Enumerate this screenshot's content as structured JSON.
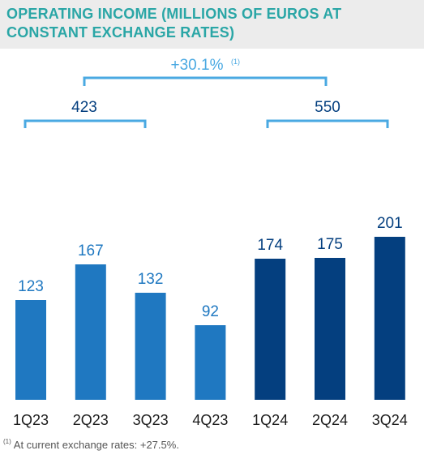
{
  "title": "OPERATING INCOME (MILLIONS OF EUROS AT CONSTANT EXCHANGE RATES)",
  "footnote": {
    "marker": "(1)",
    "text": "At current exchange rates: +27.5%."
  },
  "colors": {
    "title": "#2aa6a6",
    "bar_2023": "#1f78c1",
    "bar_2024": "#043f7f",
    "bracket": "#4aa9e2",
    "label_2023": "#1f78c1",
    "label_2024": "#043f7f"
  },
  "annotations": {
    "growth": "+30.1%",
    "growth_marker": "(1)",
    "total_2023": "423",
    "total_2024": "550"
  },
  "chart_data": {
    "type": "bar",
    "categories": [
      "1Q23",
      "2Q23",
      "3Q23",
      "4Q23",
      "1Q24",
      "2Q24",
      "3Q24"
    ],
    "values": [
      123,
      167,
      132,
      92,
      174,
      175,
      201
    ],
    "data_labels": [
      "123",
      "167",
      "132",
      "92",
      "174",
      "175",
      "201"
    ],
    "title": "OPERATING INCOME (MILLIONS OF EUROS AT CONSTANT EXCHANGE RATES)",
    "xlabel": "",
    "ylabel": "",
    "ylim": [
      0,
      201
    ],
    "grid": false
  }
}
